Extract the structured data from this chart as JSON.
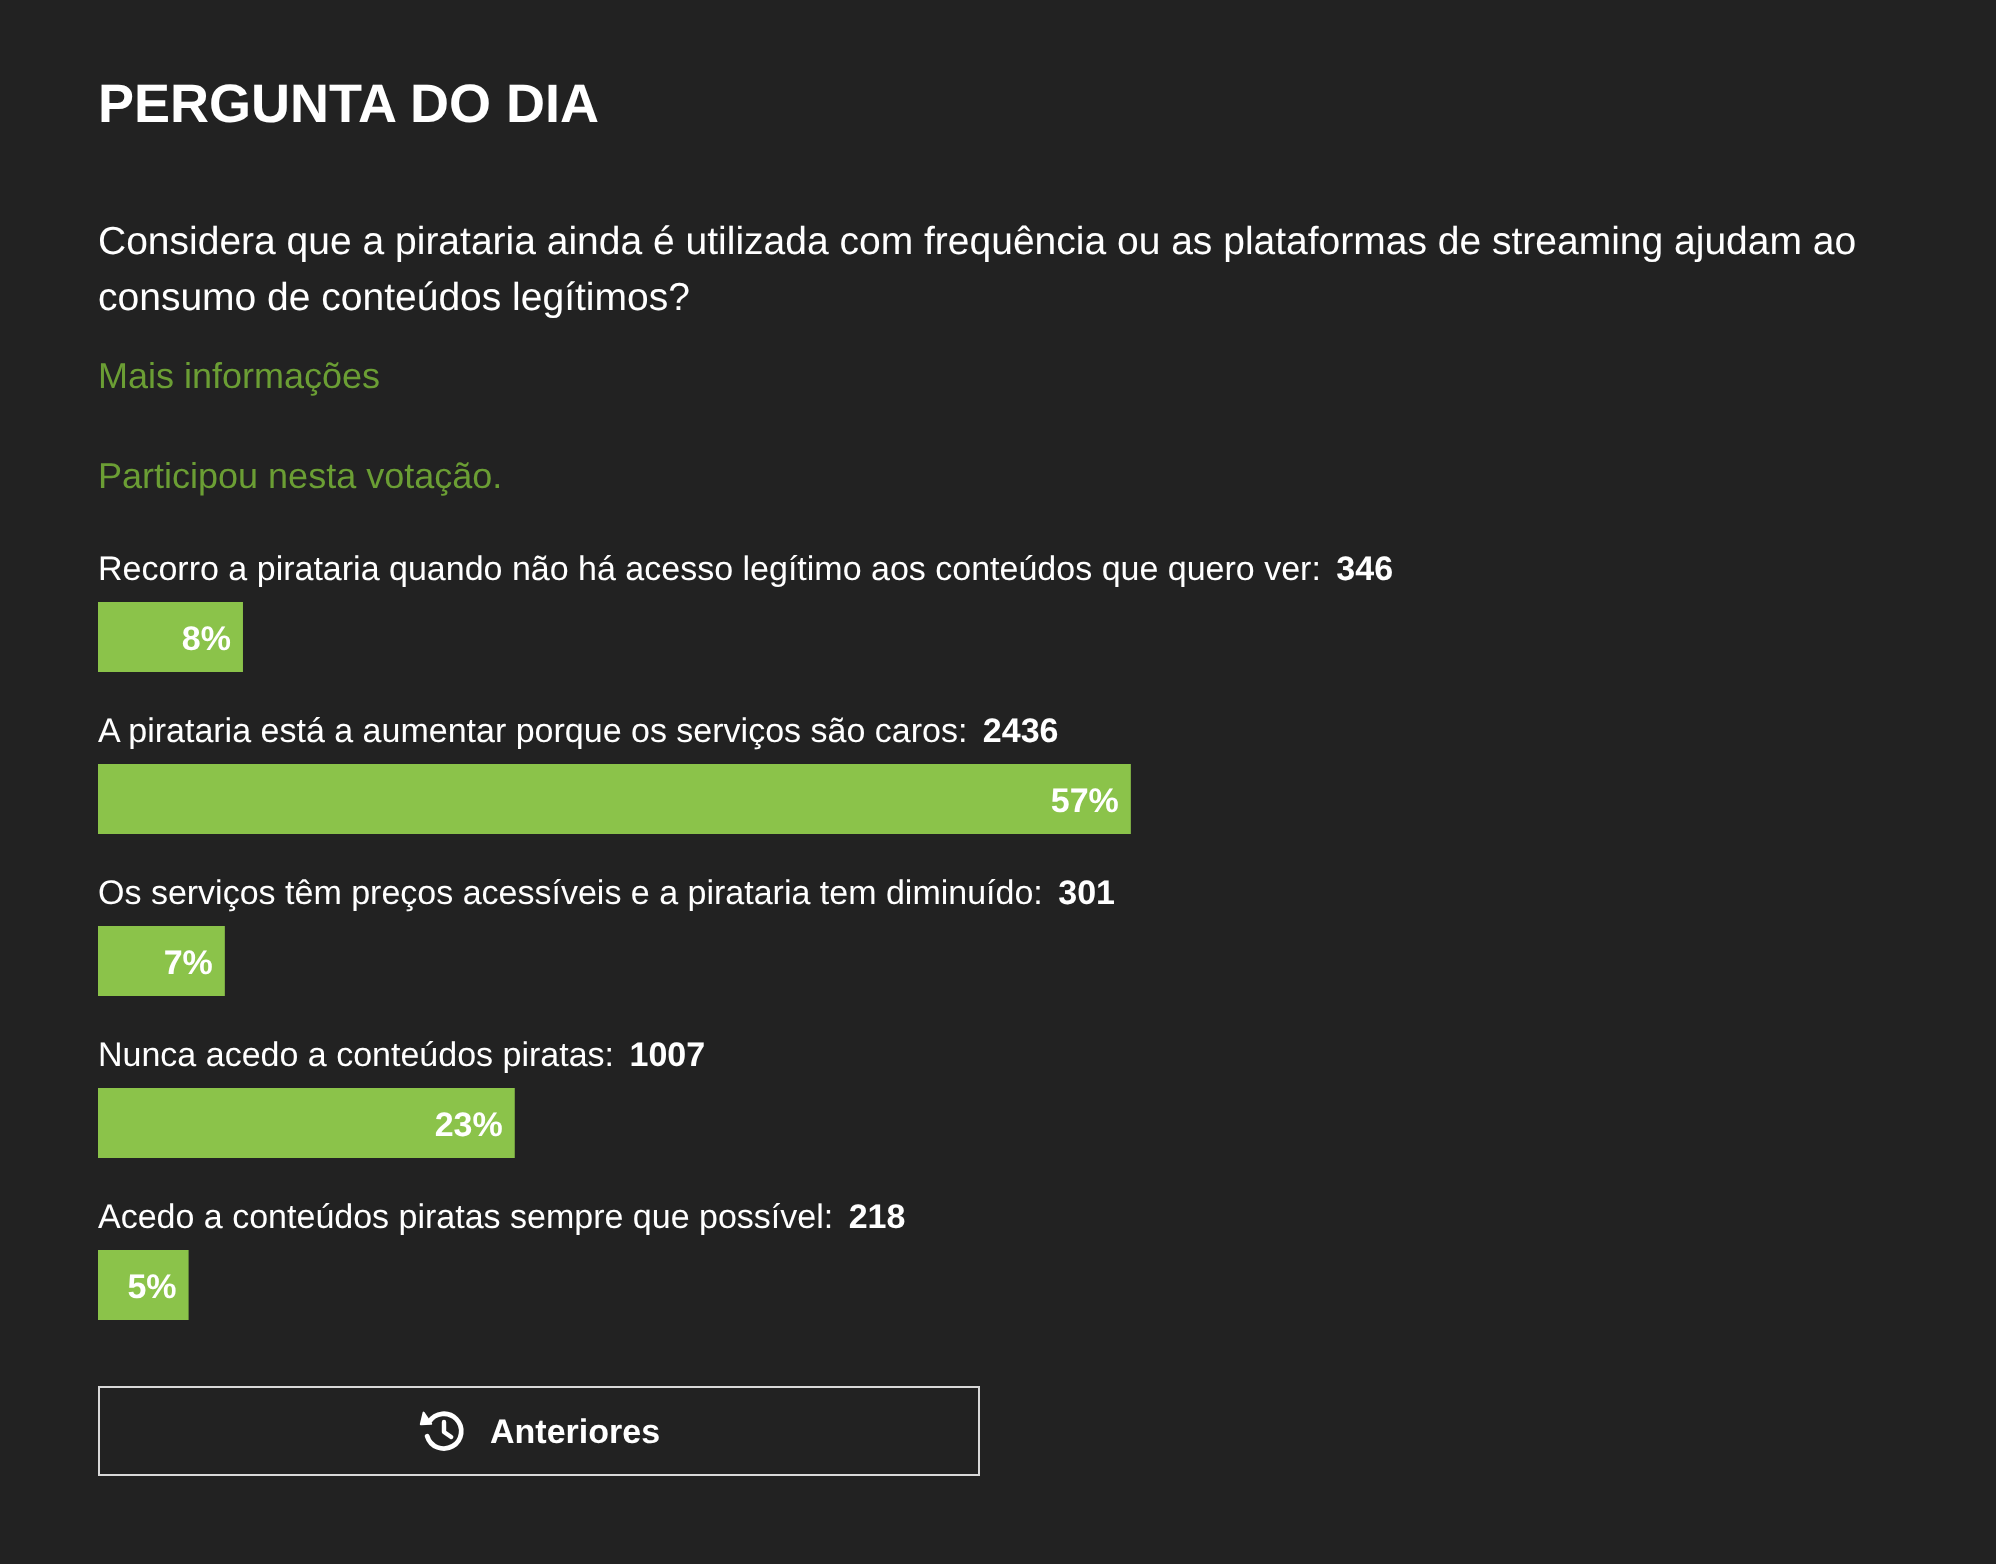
{
  "chart_data": {
    "type": "bar",
    "orientation": "horizontal",
    "title": "PERGUNTA DO DIA",
    "subtitle": "Considera que a pirataria ainda é utilizada com frequência ou as plataformas de streaming ajudam ao consumo de conteúdos legítimos?",
    "categories": [
      "Recorro a pirataria quando não há acesso legítimo aos conteúdos que quero ver: 346",
      "A pirataria está a aumentar porque os serviços são caros: 2436",
      "Os serviços têm preços acessíveis e a pirataria tem diminuído: 301",
      "Nunca acedo a conteúdos piratas: 1007",
      "Acedo a conteúdos piratas sempre que possível: 218"
    ],
    "values": [
      8,
      57,
      7,
      23,
      5
    ],
    "value_labels": [
      "8%",
      "57%",
      "7%",
      "23%",
      "5%"
    ],
    "color": "#8bc34a",
    "annotations": [
      "Mais informações",
      "Participou nesta votação.",
      "Anteriores"
    ]
  }
}
